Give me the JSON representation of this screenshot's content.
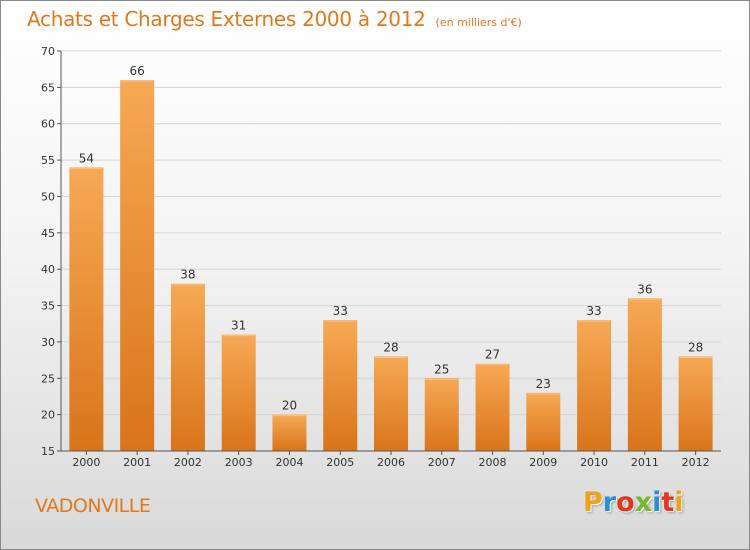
{
  "title": "Achats et Charges Externes 2000 à 2012",
  "unit": "(en milliers d'€)",
  "place": "VADONVILLE",
  "logo": {
    "letters": [
      "P",
      "r",
      "o",
      "x",
      "i",
      "t",
      "i"
    ],
    "colors": [
      "#f0a21c",
      "#2a8fd8",
      "#e2371f",
      "#75b82b",
      "#2a8fd8",
      "#e2371f",
      "#f0a21c"
    ]
  },
  "colors": {
    "bar_light": "#f7a955",
    "bar_dark": "#d9741a",
    "accent": "#e0781e"
  },
  "chart_data": {
    "type": "bar",
    "categories": [
      "2000",
      "2001",
      "2002",
      "2003",
      "2004",
      "2005",
      "2006",
      "2007",
      "2008",
      "2009",
      "2010",
      "2011",
      "2012"
    ],
    "values": [
      54,
      66,
      38,
      31,
      20,
      33,
      28,
      25,
      27,
      23,
      33,
      36,
      28
    ],
    "title": "Achats et Charges Externes 2000 à 2012",
    "subtitle": "(en milliers d'€)",
    "xlabel": "",
    "ylabel": "",
    "ylim": [
      15,
      70
    ],
    "yticks": [
      15,
      20,
      25,
      30,
      35,
      40,
      45,
      50,
      55,
      60,
      65,
      70
    ],
    "grid": true,
    "data_labels": true
  }
}
